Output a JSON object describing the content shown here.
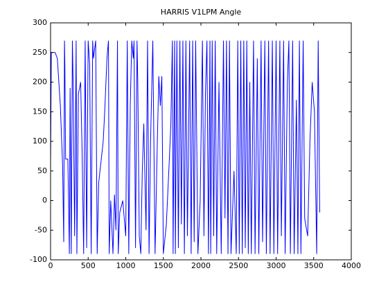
{
  "chart_data": {
    "type": "line",
    "title": "HARRIS V1LPM Angle",
    "x": [
      0,
      10,
      60,
      90,
      130,
      160,
      175,
      185,
      190,
      200,
      230,
      250,
      260,
      275,
      290,
      300,
      320,
      340,
      350,
      370,
      400,
      420,
      440,
      460,
      480,
      500,
      520,
      540,
      560,
      570,
      600,
      620,
      640,
      700,
      720,
      750,
      770,
      780,
      800,
      830,
      850,
      870,
      890,
      900,
      920,
      960,
      1000,
      1020,
      1040,
      1060,
      1080,
      1100,
      1110,
      1130,
      1150,
      1160,
      1180,
      1200,
      1220,
      1240,
      1270,
      1290,
      1310,
      1330,
      1360,
      1390,
      1420,
      1440,
      1460,
      1480,
      1500,
      1540,
      1580,
      1600,
      1620,
      1630,
      1650,
      1660,
      1680,
      1700,
      1720,
      1740,
      1760,
      1780,
      1800,
      1820,
      1850,
      1870,
      1890,
      1910,
      1930,
      1960,
      1990,
      2020,
      2040,
      2060,
      2080,
      2100,
      2120,
      2130,
      2150,
      2170,
      2190,
      2210,
      2240,
      2270,
      2300,
      2320,
      2340,
      2360,
      2380,
      2400,
      2440,
      2470,
      2490,
      2510,
      2530,
      2550,
      2570,
      2590,
      2610,
      2630,
      2650,
      2670,
      2700,
      2720,
      2750,
      2770,
      2800,
      2820,
      2850,
      2870,
      2900,
      2920,
      2950,
      2970,
      3000,
      3020,
      3050,
      3070,
      3100,
      3120,
      3150,
      3170,
      3190,
      3220,
      3240,
      3270,
      3290,
      3310,
      3330,
      3360,
      3380,
      3420,
      3450,
      3480,
      3510,
      3540,
      3560,
      3580
    ],
    "series": [
      {
        "color": "#0000ff",
        "values": [
          60,
          250,
          250,
          240,
          160,
          60,
          -70,
          270,
          230,
          70,
          70,
          -90,
          190,
          -90,
          270,
          200,
          -60,
          270,
          -90,
          180,
          200,
          80,
          -90,
          270,
          -80,
          270,
          230,
          -90,
          270,
          240,
          270,
          -90,
          30,
          100,
          150,
          240,
          270,
          -90,
          0,
          -90,
          10,
          -50,
          270,
          -90,
          -20,
          0,
          -60,
          270,
          -90,
          160,
          270,
          240,
          270,
          -80,
          270,
          200,
          -60,
          -90,
          50,
          130,
          -50,
          270,
          -90,
          100,
          270,
          -90,
          100,
          210,
          160,
          210,
          -90,
          -40,
          70,
          130,
          270,
          -90,
          270,
          -90,
          270,
          -80,
          270,
          -40,
          270,
          -90,
          270,
          -60,
          270,
          -90,
          270,
          -70,
          270,
          -90,
          0,
          270,
          -60,
          180,
          270,
          -90,
          270,
          -90,
          270,
          -60,
          270,
          -90,
          200,
          -90,
          270,
          -30,
          270,
          -90,
          270,
          -90,
          50,
          -90,
          270,
          -90,
          270,
          -90,
          270,
          -80,
          270,
          -90,
          200,
          -90,
          270,
          -90,
          240,
          -90,
          270,
          -70,
          270,
          -90,
          270,
          -90,
          270,
          -90,
          270,
          -90,
          270,
          -60,
          270,
          -90,
          200,
          270,
          -90,
          270,
          -90,
          170,
          -90,
          270,
          -90,
          270,
          -30,
          -60,
          100,
          200,
          150,
          -90,
          270,
          -20
        ]
      }
    ],
    "xlim": [
      0,
      4000
    ],
    "xticks": [
      0,
      500,
      1000,
      1500,
      2000,
      2500,
      3000,
      3500,
      4000
    ],
    "ylim": [
      -100,
      300
    ],
    "yticks": [
      -100,
      -50,
      0,
      50,
      100,
      150,
      200,
      250,
      300
    ]
  }
}
